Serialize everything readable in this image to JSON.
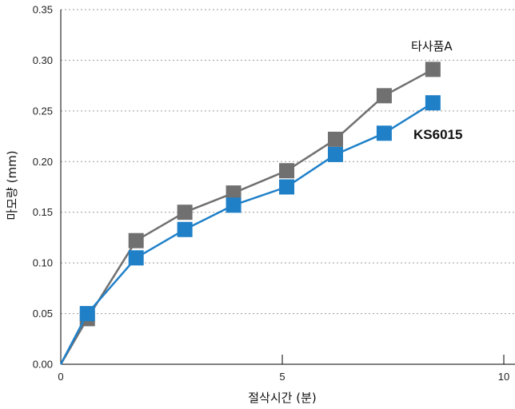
{
  "chart_data": {
    "type": "line",
    "title": "",
    "xlabel": "절삭시간 (분)",
    "ylabel": "마모량 (mm)",
    "xlim": [
      0,
      10
    ],
    "ylim": [
      0,
      0.35
    ],
    "grid": true,
    "x_ticks": [
      "0",
      "5",
      "10"
    ],
    "y_ticks": [
      "0.00",
      "0.05",
      "0.10",
      "0.15",
      "0.20",
      "0.25",
      "0.30",
      "0.35"
    ],
    "series": [
      {
        "name": "타사품A",
        "color": "#707070",
        "marker": "square",
        "x": [
          0,
          0.6,
          1.7,
          2.8,
          3.9,
          5.1,
          6.2,
          7.3,
          8.4
        ],
        "y": [
          0,
          0.045,
          0.122,
          0.15,
          0.169,
          0.191,
          0.222,
          0.265,
          0.291
        ]
      },
      {
        "name": "KS6015",
        "color": "#1f80c8",
        "marker": "square",
        "x": [
          0,
          0.6,
          1.7,
          2.8,
          3.9,
          5.1,
          6.2,
          7.3,
          8.4
        ],
        "y": [
          0,
          0.05,
          0.105,
          0.133,
          0.157,
          0.175,
          0.207,
          0.228,
          0.258
        ]
      }
    ]
  }
}
